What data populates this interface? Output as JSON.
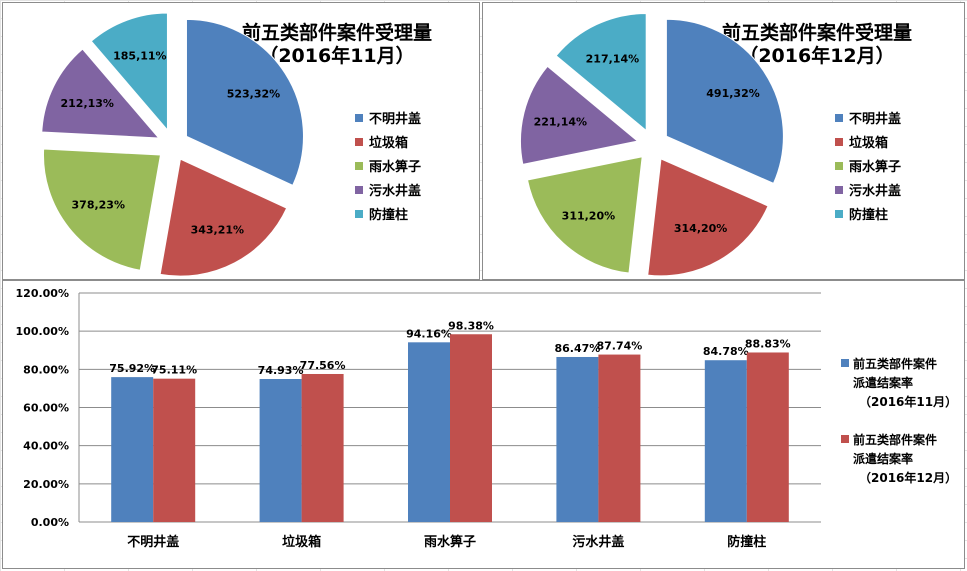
{
  "chart_data": [
    {
      "type": "pie",
      "title": "前五类部件案件受理量",
      "subtitle": "（2016年11月）",
      "categories": [
        "不明井盖",
        "垃圾箱",
        "雨水箅子",
        "污水井盖",
        "防撞柱"
      ],
      "values": [
        523,
        343,
        378,
        212,
        185
      ],
      "data_labels": [
        "523,32%",
        "343,21%",
        "378,23%",
        "212,13%",
        "185,11%"
      ],
      "exploded": true,
      "legend": "right"
    },
    {
      "type": "pie",
      "title": "前五类部件案件受理量",
      "subtitle": "（2016年12月）",
      "categories": [
        "不明井盖",
        "垃圾箱",
        "雨水箅子",
        "污水井盖",
        "防撞柱"
      ],
      "values": [
        491,
        314,
        311,
        221,
        217
      ],
      "data_labels": [
        "491,32%",
        "314,20%",
        "311,20%",
        "221,14%",
        "217,14%"
      ],
      "exploded": true,
      "legend": "right"
    },
    {
      "type": "bar",
      "categories": [
        "不明井盖",
        "垃圾箱",
        "雨水箅子",
        "污水井盖",
        "防撞柱"
      ],
      "series": [
        {
          "name": "前五类部件案件派遣结案率（2016年11月）",
          "legend_lines": [
            "前五类部件案件",
            "派遣结案率",
            "（2016年11月）"
          ],
          "values": [
            75.92,
            74.93,
            94.16,
            86.47,
            84.78
          ],
          "labels": [
            "75.92%",
            "74.93%",
            "94.16%",
            "86.47%",
            "84.78%"
          ]
        },
        {
          "name": "前五类部件案件派遣结案率（2016年12月）",
          "legend_lines": [
            "前五类部件案件",
            "派遣结案率",
            "（2016年12月）"
          ],
          "values": [
            75.11,
            77.56,
            98.38,
            87.74,
            88.83
          ],
          "labels": [
            "75.11%",
            "77.56%",
            "98.38%",
            "87.74%",
            "88.83%"
          ]
        }
      ],
      "ylim": [
        0,
        120
      ],
      "yticks": [
        "0.00%",
        "20.00%",
        "40.00%",
        "60.00%",
        "80.00%",
        "100.00%",
        "120.00%"
      ],
      "grid": true,
      "legend": "right"
    }
  ],
  "colors": {
    "slices": [
      "#4f81bd",
      "#c0504d",
      "#9bbb59",
      "#8064a2",
      "#4bacc6"
    ],
    "series": [
      "#4f81bd",
      "#c0504d"
    ],
    "grid": "#8c8c8c"
  }
}
